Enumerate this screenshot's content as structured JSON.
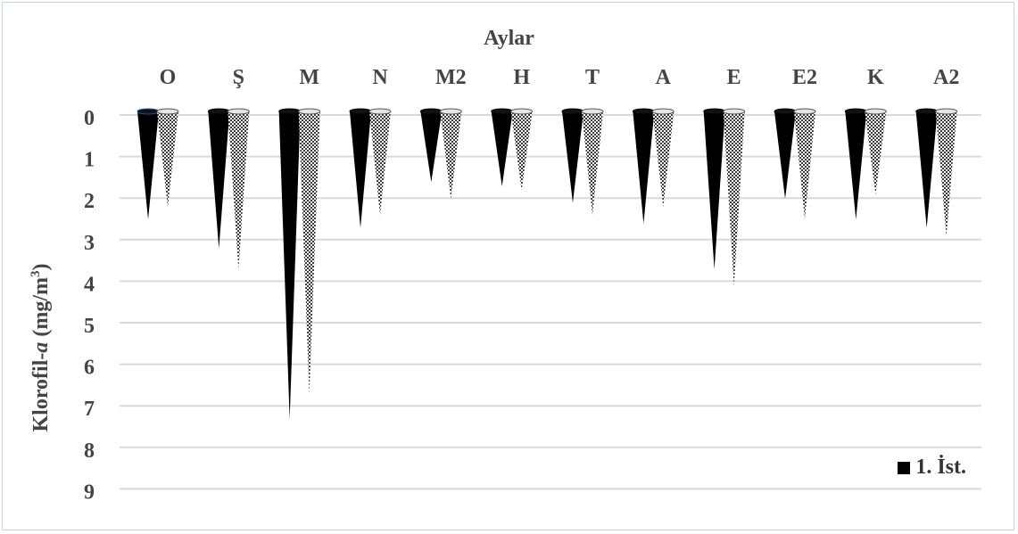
{
  "chart_data": {
    "type": "bar",
    "x_axis_title": "Aylar",
    "ylabel_main": "Klorofil-",
    "ylabel_italic": "a",
    "ylabel_unit_pre": " (mg/m",
    "ylabel_unit_sup": "3",
    "ylabel_unit_post": ")",
    "categories": [
      "O",
      "Ş",
      "M",
      "N",
      "M2",
      "H",
      "T",
      "A",
      "E",
      "E2",
      "K",
      "A2"
    ],
    "yticks": [
      "0",
      "1",
      "2",
      "3",
      "4",
      "5",
      "6",
      "7",
      "8",
      "9"
    ],
    "ylim": [
      0,
      9
    ],
    "y_inverted": true,
    "series": [
      {
        "name": "1. İst.",
        "color": "#000000",
        "values": [
          2.6,
          3.3,
          7.4,
          2.8,
          1.7,
          1.8,
          2.2,
          2.7,
          3.8,
          2.1,
          2.6,
          2.8
        ]
      },
      {
        "color": "#9a9a9a",
        "values": [
          2.3,
          3.8,
          6.8,
          2.5,
          2.1,
          1.9,
          2.5,
          2.3,
          4.2,
          2.6,
          2.0,
          3.0
        ]
      }
    ],
    "grid": true,
    "legend_position": "bottom-right"
  },
  "legend": {
    "label": "1. İst."
  }
}
